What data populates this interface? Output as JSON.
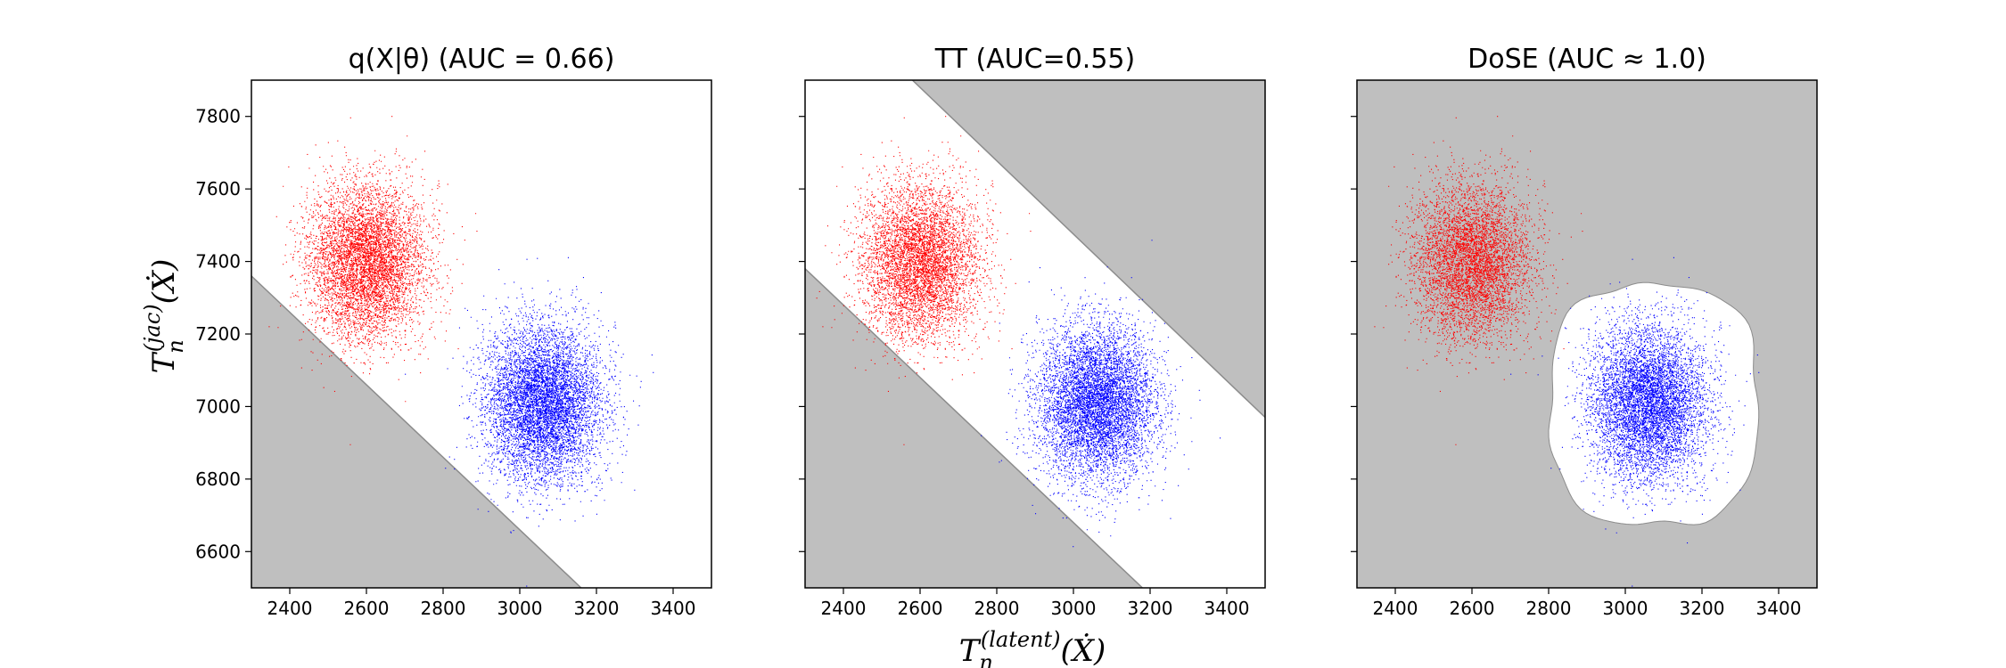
{
  "chart_data": [
    {
      "type": "scatter",
      "title": "q(X|θ) (AUC  = 0.66)",
      "xlim": [
        2300,
        3500
      ],
      "ylim": [
        6500,
        7900
      ],
      "xticks": [
        2400,
        2600,
        2800,
        3000,
        3200,
        3400
      ],
      "yticks": [
        6600,
        6800,
        7000,
        7200,
        7400,
        7600,
        7800
      ],
      "region_color": "#bfbfbf",
      "decision_region": {
        "shape": "half-plane-below",
        "line": [
          [
            2300,
            7360
          ],
          [
            3160,
            6500
          ]
        ]
      },
      "series": [
        {
          "color": "#ff0000",
          "center": [
            2600,
            7400
          ],
          "std": [
            75,
            105
          ],
          "n": 9000
        },
        {
          "color": "#0000ff",
          "center": [
            3060,
            7010
          ],
          "std": [
            75,
            105
          ],
          "n": 9000
        }
      ]
    },
    {
      "type": "scatter",
      "title": "TT (AUC=0.55)",
      "xlim": [
        2300,
        3500
      ],
      "ylim": [
        6500,
        7900
      ],
      "xticks": [
        2400,
        2600,
        2800,
        3000,
        3200,
        3400
      ],
      "yticks": [
        6600,
        6800,
        7000,
        7200,
        7400,
        7600,
        7800
      ],
      "region_color": "#bfbfbf",
      "decision_region": {
        "shape": "outside-band",
        "lower_line": [
          [
            2300,
            7380
          ],
          [
            3180,
            6500
          ]
        ],
        "upper_line": [
          [
            2580,
            7900
          ],
          [
            3500,
            6970
          ]
        ]
      },
      "series": [
        {
          "color": "#ff0000",
          "center": [
            2600,
            7400
          ],
          "std": [
            75,
            105
          ],
          "n": 9000
        },
        {
          "color": "#0000ff",
          "center": [
            3060,
            7010
          ],
          "std": [
            75,
            105
          ],
          "n": 9000
        }
      ]
    },
    {
      "type": "scatter",
      "title": "DoSE (AUC ≈ 1.0)",
      "xlim": [
        2300,
        3500
      ],
      "ylim": [
        6500,
        7900
      ],
      "xticks": [
        2400,
        2600,
        2800,
        3000,
        3200,
        3400
      ],
      "yticks": [
        6600,
        6800,
        7000,
        7200,
        7400,
        7600,
        7800
      ],
      "region_color": "#bfbfbf",
      "decision_region": {
        "shape": "outside-blob",
        "center": [
          3075,
          7005
        ],
        "radii": [
          280,
          350
        ]
      },
      "series": [
        {
          "color": "#ff0000",
          "center": [
            2600,
            7400
          ],
          "std": [
            75,
            105
          ],
          "n": 9000
        },
        {
          "color": "#0000ff",
          "center": [
            3060,
            7010
          ],
          "std": [
            75,
            105
          ],
          "n": 9000
        }
      ]
    }
  ],
  "labels": {
    "ylabel_base": "T",
    "ylabel_sub": "n",
    "ylabel_sup": "(jac)",
    "ylabel_arg": "(Ẋ)",
    "xlabel_base": "T",
    "xlabel_sub": "n",
    "xlabel_sup": "(latent)",
    "xlabel_arg": "(Ẋ)"
  }
}
